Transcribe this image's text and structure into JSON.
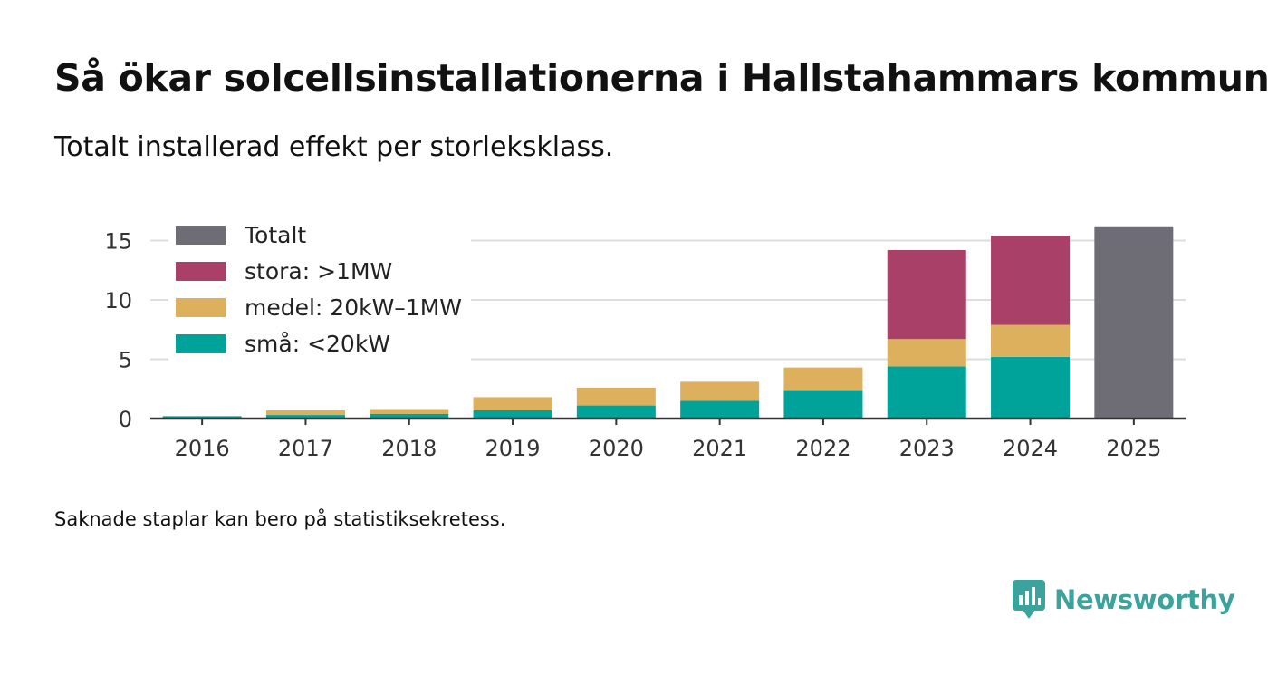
{
  "title": "Så ökar solcellsinstallationerna i Hallstahammars kommun",
  "subtitle": "Totalt installerad effekt per storleksklass.",
  "footnote": "Saknade staplar kan bero på statistiksekretess.",
  "brand": {
    "name": "Newsworthy",
    "color": "#3aa39b",
    "icon": "bar-chart-speech-bubble-icon"
  },
  "chart_data": {
    "type": "bar",
    "stacked": true,
    "categories": [
      "2016",
      "2017",
      "2018",
      "2019",
      "2020",
      "2021",
      "2022",
      "2023",
      "2024",
      "2025"
    ],
    "series": [
      {
        "name": "små: <20kW",
        "color": "#00a39a",
        "values": [
          0.2,
          0.3,
          0.4,
          0.7,
          1.1,
          1.5,
          2.4,
          4.4,
          5.2,
          null
        ]
      },
      {
        "name": "medel: 20kW–1MW",
        "color": "#dcb05c",
        "values": [
          0.0,
          0.4,
          0.4,
          1.1,
          1.5,
          1.6,
          1.9,
          2.3,
          2.7,
          null
        ]
      },
      {
        "name": "stora: >1MW",
        "color": "#a84068",
        "values": [
          null,
          null,
          null,
          null,
          null,
          null,
          null,
          7.5,
          7.5,
          null
        ]
      },
      {
        "name": "Totalt",
        "color": "#6e6d75",
        "values": [
          null,
          null,
          null,
          null,
          null,
          null,
          null,
          null,
          null,
          16.2
        ]
      }
    ],
    "legend": [
      "Totalt",
      "stora: >1MW",
      "medel: 20kW–1MW",
      "små: <20kW"
    ],
    "yticks": [
      0,
      5,
      10,
      15
    ],
    "ylim": [
      0,
      16.5
    ],
    "xlabel": "",
    "ylabel": "",
    "legend_position": "top-left",
    "grid": true
  }
}
